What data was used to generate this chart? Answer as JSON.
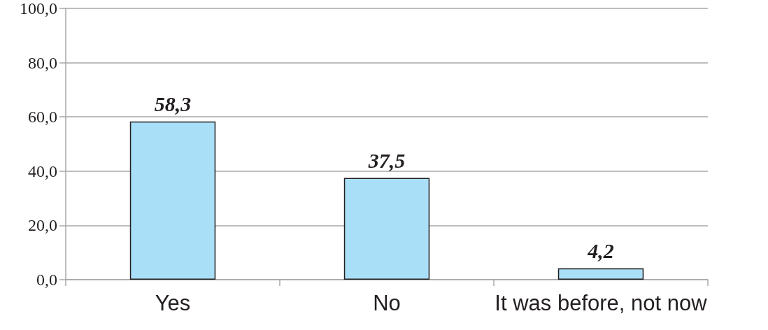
{
  "chart_data": {
    "type": "bar",
    "categories": [
      "Yes",
      "No",
      "It was before, not now"
    ],
    "values": [
      58.3,
      37.5,
      4.2
    ],
    "color": "#aadff8",
    "value_labels": [
      "58,3",
      "37,5",
      "4,2"
    ],
    "ylim": [
      0,
      100
    ],
    "yticks": [
      {
        "value": 0,
        "label": "0,0"
      },
      {
        "value": 20,
        "label": "20,0"
      },
      {
        "value": 40,
        "label": "40,0"
      },
      {
        "value": 60,
        "label": "60,0"
      },
      {
        "value": 80,
        "label": "80,0"
      },
      {
        "value": 100,
        "label": "100,0"
      }
    ],
    "grid": "y"
  }
}
